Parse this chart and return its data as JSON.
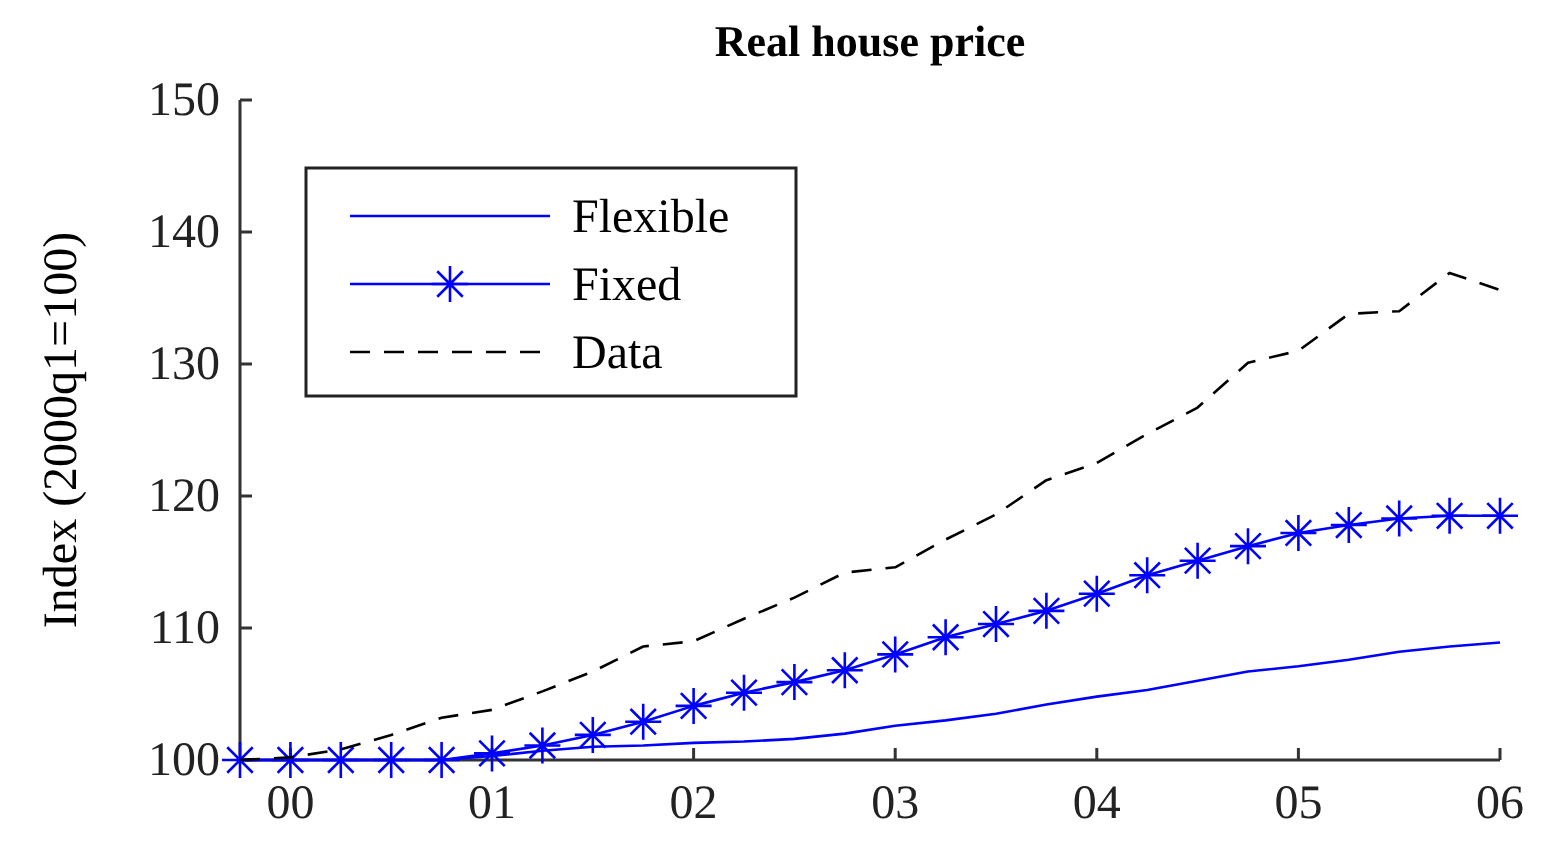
{
  "chart_data": {
    "type": "line",
    "title": "Real house price",
    "ylabel": "Index (2000q1=100)",
    "x": [
      1999.75,
      2000,
      2000.25,
      2000.5,
      2000.75,
      2001,
      2001.25,
      2001.5,
      2001.75,
      2002,
      2002.25,
      2002.5,
      2002.75,
      2003,
      2003.25,
      2003.5,
      2003.75,
      2004,
      2004.25,
      2004.5,
      2004.75,
      2005,
      2005.25,
      2005.5,
      2005.75,
      2006
    ],
    "xlim": [
      1999.75,
      2006
    ],
    "xticks": [
      {
        "value": 2000,
        "label": "00"
      },
      {
        "value": 2001,
        "label": "01"
      },
      {
        "value": 2002,
        "label": "02"
      },
      {
        "value": 2003,
        "label": "03"
      },
      {
        "value": 2004,
        "label": "04"
      },
      {
        "value": 2005,
        "label": "05"
      },
      {
        "value": 2006,
        "label": "06"
      }
    ],
    "ylim": [
      100,
      150
    ],
    "yticks": [
      100,
      110,
      120,
      130,
      140,
      150
    ],
    "legend": "top left",
    "grid": false,
    "series": [
      {
        "name": "Flexible",
        "color": "#0000ff",
        "marker": "none",
        "line_style": "solid",
        "values": [
          100,
          100,
          100,
          100,
          100,
          100.3,
          100.7,
          101.0,
          101.1,
          101.3,
          101.4,
          101.6,
          102.0,
          102.6,
          103.0,
          103.5,
          104.2,
          104.8,
          105.3,
          106.0,
          106.7,
          107.1,
          107.6,
          108.2,
          108.6,
          108.9
        ]
      },
      {
        "name": "Fixed",
        "color": "#0000ff",
        "marker": "cross",
        "line_style": "solid",
        "values": [
          100,
          100,
          100,
          100,
          100,
          100.5,
          101.1,
          101.9,
          102.9,
          104.1,
          105.1,
          105.9,
          106.8,
          108.0,
          109.3,
          110.3,
          111.3,
          112.6,
          114.0,
          115.1,
          116.2,
          117.2,
          117.8,
          118.3,
          118.5,
          118.5
        ]
      },
      {
        "name": "Data",
        "color": "#000000",
        "marker": "none",
        "line_style": "dashed",
        "values": [
          100,
          100.2,
          100.8,
          101.9,
          103.2,
          103.8,
          105.2,
          106.7,
          108.6,
          109.0,
          110.7,
          112.3,
          114.2,
          114.6,
          116.7,
          118.6,
          121.2,
          122.5,
          124.7,
          126.7,
          130.1,
          131.0,
          133.8,
          134.0,
          136.9,
          135.6
        ]
      }
    ]
  }
}
